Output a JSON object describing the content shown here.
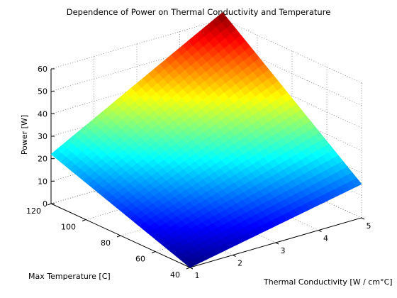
{
  "chart_data": {
    "type": "surface",
    "title": "Dependence of Power on Thermal Conductivity and Temperature",
    "xlabel": "Thermal Conductivity [W / cm°C]",
    "ylabel": "Max Temperature [C]",
    "zlabel": "Power [W]",
    "xlim": [
      1,
      5
    ],
    "ylim": [
      40,
      120
    ],
    "zlim": [
      0,
      60
    ],
    "x_ticks": [
      1,
      2,
      3,
      4,
      5
    ],
    "y_ticks": [
      40,
      60,
      80,
      100,
      120
    ],
    "z_ticks": [
      0,
      10,
      20,
      30,
      40,
      50,
      60
    ],
    "grid": true,
    "colormap": "jet",
    "corner_values": [
      {
        "x": 1,
        "y": 40,
        "z": 0
      },
      {
        "x": 1,
        "y": 120,
        "z": 22
      },
      {
        "x": 5,
        "y": 40,
        "z": 15
      },
      {
        "x": 5,
        "y": 120,
        "z": 63
      }
    ]
  }
}
